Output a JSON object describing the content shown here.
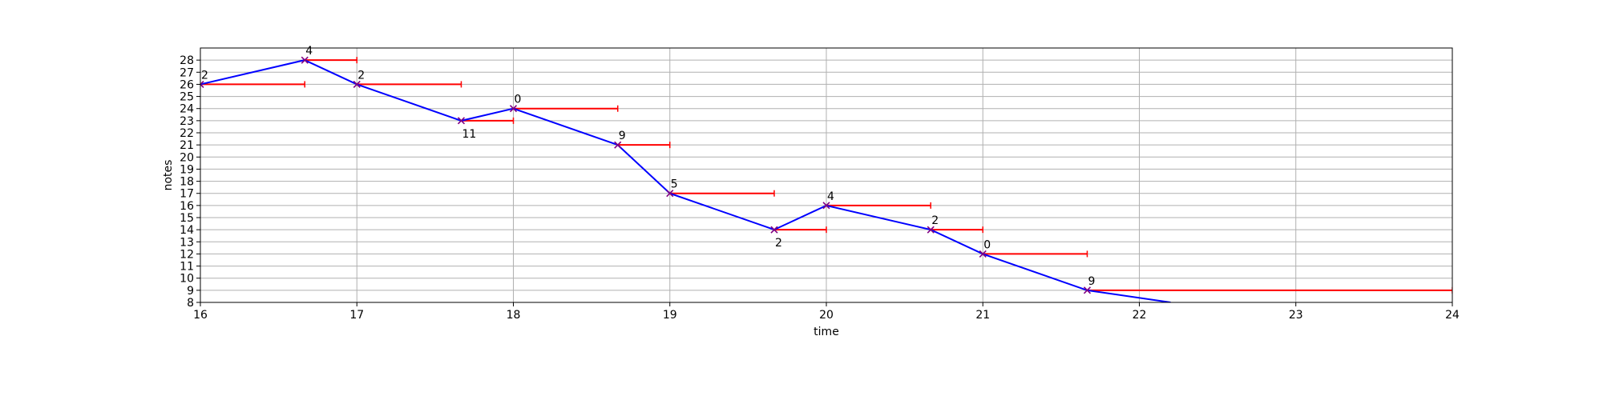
{
  "chart_data": {
    "type": "line",
    "title": "",
    "xlabel": "time",
    "ylabel": "notes",
    "xlim": [
      16,
      24
    ],
    "ylim": [
      8,
      29
    ],
    "xticks": [
      "16",
      "17",
      "18",
      "19",
      "20",
      "21",
      "22",
      "23",
      "24"
    ],
    "yticks": [
      "8",
      "9",
      "10",
      "11",
      "12",
      "13",
      "14",
      "15",
      "16",
      "17",
      "18",
      "19",
      "20",
      "21",
      "22",
      "23",
      "24",
      "25",
      "26",
      "27",
      "28"
    ],
    "grid": true,
    "colors": {
      "line": "#0000ff",
      "marker": "#800080",
      "duration": "#ff0000",
      "grid": "#b0b0b0"
    },
    "series": [
      {
        "points": [
          {
            "x": 16.0,
            "y": 26,
            "label": "2",
            "pos": "above",
            "end": 16.667
          },
          {
            "x": 16.667,
            "y": 28,
            "label": "4",
            "pos": "above",
            "end": 17.0
          },
          {
            "x": 17.0,
            "y": 26,
            "label": "2",
            "pos": "above",
            "end": 17.667
          },
          {
            "x": 17.667,
            "y": 23,
            "label": "11",
            "pos": "below",
            "end": 18.0
          },
          {
            "x": 18.0,
            "y": 24,
            "label": "0",
            "pos": "above",
            "end": 18.667
          },
          {
            "x": 18.667,
            "y": 21,
            "label": "9",
            "pos": "above",
            "end": 19.0
          },
          {
            "x": 19.0,
            "y": 17,
            "label": "5",
            "pos": "above",
            "end": 19.667
          },
          {
            "x": 19.667,
            "y": 14,
            "label": "2",
            "pos": "below",
            "end": 20.0
          },
          {
            "x": 20.0,
            "y": 16,
            "label": "4",
            "pos": "above",
            "end": 20.667
          },
          {
            "x": 20.667,
            "y": 14,
            "label": "2",
            "pos": "above",
            "end": 21.0
          },
          {
            "x": 21.0,
            "y": 12,
            "label": "0",
            "pos": "above",
            "end": 21.667
          },
          {
            "x": 21.667,
            "y": 9,
            "label": "9",
            "pos": "above",
            "end": 24.0
          }
        ],
        "tail": {
          "x": 22.2,
          "y": 8
        }
      }
    ]
  }
}
